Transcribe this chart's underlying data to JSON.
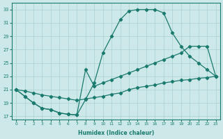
{
  "xlabel": "Humidex (Indice chaleur)",
  "xlim": [
    -0.5,
    23.5
  ],
  "ylim": [
    16.5,
    34
  ],
  "xticks": [
    0,
    1,
    2,
    3,
    4,
    5,
    6,
    7,
    8,
    9,
    10,
    11,
    12,
    13,
    14,
    15,
    16,
    17,
    18,
    19,
    20,
    21,
    22,
    23
  ],
  "yticks": [
    17,
    19,
    21,
    23,
    25,
    27,
    29,
    31,
    33
  ],
  "background_color": "#cce8e8",
  "grid_color": "#aad0d0",
  "line_color": "#1a7a6e",
  "line_upper_x": [
    0,
    1,
    2,
    3,
    4,
    5,
    6,
    7,
    8,
    9,
    10,
    11,
    12,
    13,
    14,
    15,
    16,
    17,
    18,
    19,
    20,
    21,
    22,
    23
  ],
  "line_upper_y": [
    21,
    20,
    19,
    18.2,
    18,
    17.5,
    17.3,
    17.2,
    19.5,
    22,
    26.5,
    29,
    31.5,
    32.8,
    33,
    33,
    33,
    32.5,
    29.5,
    27.5,
    26,
    25,
    24,
    23
  ],
  "line_mid_x": [
    0,
    1,
    2,
    3,
    4,
    5,
    6,
    7,
    8,
    9,
    10,
    11,
    12,
    13,
    14,
    15,
    16,
    17,
    18,
    19,
    20,
    21,
    22,
    23
  ],
  "line_mid_y": [
    21,
    20.8,
    20.5,
    20.2,
    20,
    19.8,
    19.6,
    19.4,
    19.6,
    19.8,
    20,
    20.3,
    20.5,
    21,
    21.3,
    21.5,
    21.7,
    22,
    22.2,
    22.4,
    22.5,
    22.7,
    22.8,
    23
  ],
  "line_low_x": [
    0,
    1,
    2,
    3,
    4,
    5,
    6,
    7,
    8,
    9,
    10,
    11,
    12,
    13,
    14,
    15,
    16,
    17,
    18,
    19,
    20,
    21,
    22,
    23
  ],
  "line_low_y": [
    21,
    20,
    19,
    18.2,
    18,
    17.5,
    17.3,
    17.2,
    24,
    21.5,
    22,
    22.5,
    23,
    23.5,
    24,
    24.5,
    25,
    25.5,
    26,
    26.5,
    27.5,
    27.5,
    27.5,
    23
  ]
}
